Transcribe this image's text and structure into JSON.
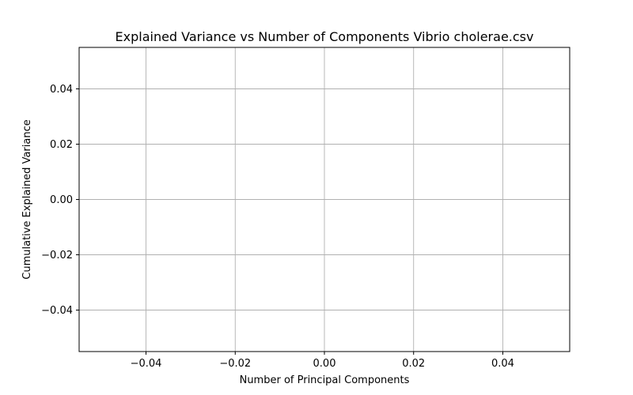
{
  "chart_data": {
    "type": "line",
    "title": "Explained Variance vs Number of Components Vibrio cholerae.csv",
    "xlabel": "Number of Principal Components",
    "ylabel": "Cumulative Explained Variance",
    "xlim": [
      -0.055,
      0.055
    ],
    "ylim": [
      -0.055,
      0.055
    ],
    "x_ticks": [
      -0.04,
      -0.02,
      0.0,
      0.02,
      0.04
    ],
    "x_tick_labels": [
      "−0.04",
      "−0.02",
      "0.00",
      "0.02",
      "0.04"
    ],
    "y_ticks": [
      0.04,
      0.02,
      0.0,
      -0.02,
      -0.04
    ],
    "y_tick_labels": [
      "0.04",
      "0.02",
      "0.00",
      "−0.02",
      "−0.04"
    ],
    "grid": true,
    "series": [
      {
        "x": [],
        "y": []
      }
    ]
  }
}
